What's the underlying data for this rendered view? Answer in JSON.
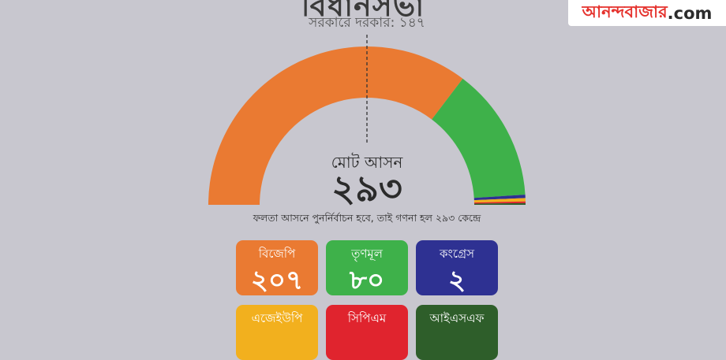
{
  "headline": "বিধানসভা",
  "majority_text": "সরকারে দরকার: ১৪৭",
  "logo": {
    "red": "আনন্দবাজার",
    "dark": ".com"
  },
  "total": {
    "label": "মোট আসন",
    "value": "২৯৩"
  },
  "note": "ফলতা আসনে পুনর্নির্বাচন হবে, তাই গণনা হল ২৯৩ কেন্দ্রে",
  "parties": [
    {
      "name": "বিজেপি",
      "seats_label": "২০৭",
      "color": "#ea7a32"
    },
    {
      "name": "তৃণমূল",
      "seats_label": "৮০",
      "color": "#3eb14a"
    },
    {
      "name": "কংগ্রেস",
      "seats_label": "২",
      "color": "#2e3192"
    },
    {
      "name": "এজেইউপি",
      "seats_label": "",
      "color": "#f2b01e"
    },
    {
      "name": "সিপিএম",
      "seats_label": "",
      "color": "#e0242e"
    },
    {
      "name": "আইএসএফ",
      "seats_label": "",
      "color": "#2e5e2a"
    }
  ],
  "chart_data": {
    "type": "pie",
    "title": "",
    "total_seats": 293,
    "majority_mark": 147,
    "categories": [
      "বিজেপি",
      "তৃণমূল",
      "কংগ্রেস",
      "এজেইউপি",
      "সিপিএম",
      "আইএসএফ"
    ],
    "values": [
      207,
      80,
      2,
      2,
      1,
      1
    ],
    "colors": [
      "#ea7a32",
      "#3eb14a",
      "#2e3192",
      "#f2b01e",
      "#e0242e",
      "#2e5e2a"
    ]
  }
}
